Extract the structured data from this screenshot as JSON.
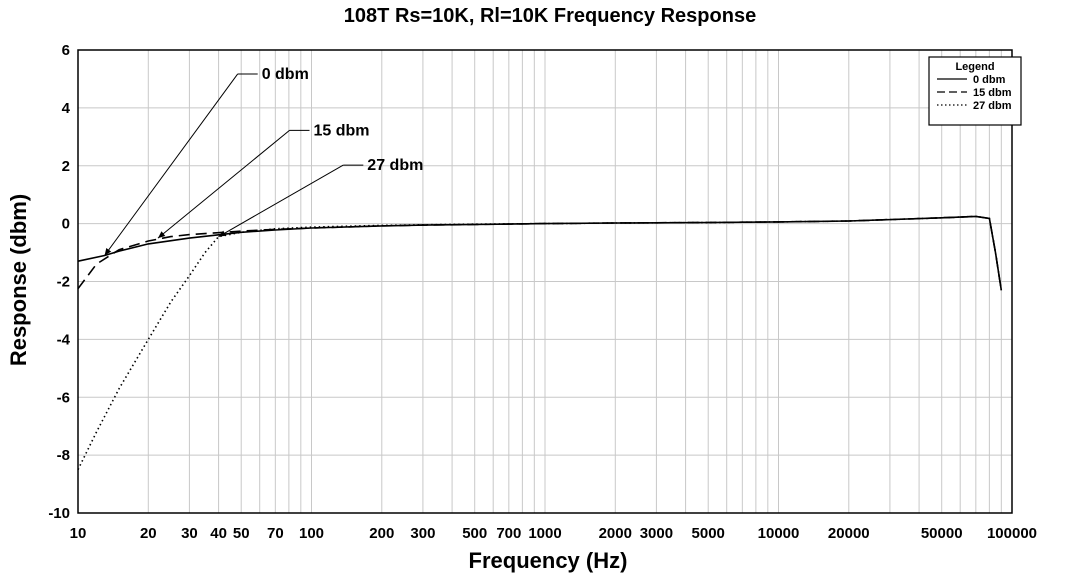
{
  "chart_data": {
    "type": "line",
    "title": "108T Rs=10K, Rl=10K Frequency Response",
    "xlabel": "Frequency (Hz)",
    "ylabel": "Response (dbm)",
    "xscale": "log",
    "xlim": [
      10,
      100000
    ],
    "ylim": [
      -10,
      6
    ],
    "x_ticks": [
      10,
      20,
      30,
      40,
      50,
      70,
      100,
      200,
      300,
      500,
      700,
      1000,
      2000,
      3000,
      5000,
      10000,
      20000,
      50000,
      100000
    ],
    "x_tick_labels": [
      "10",
      "20",
      "30",
      "40",
      "50",
      "70",
      "100",
      "200",
      "300",
      "500",
      "700",
      "1000",
      "2000",
      "3000",
      "5000",
      "10000",
      "20000",
      "50000",
      "100000"
    ],
    "y_ticks": [
      6,
      4,
      2,
      0,
      -2,
      -4,
      -6,
      -8,
      -10
    ],
    "y_tick_labels": [
      "6",
      "4",
      "2",
      "0",
      "-2",
      "-4",
      "-6",
      "-8",
      "-10"
    ],
    "grid": true,
    "legend": {
      "title": "Legend",
      "position": "top-right",
      "entries": [
        "0 dbm",
        "15 dbm",
        "27 dbm"
      ]
    },
    "series": [
      {
        "name": "0 dbm",
        "style": "solid",
        "x": [
          10,
          13,
          15,
          20,
          30,
          50,
          70,
          100,
          200,
          300,
          500,
          1000,
          2000,
          5000,
          10000,
          20000,
          50000,
          70000,
          80000,
          85000,
          90000
        ],
        "y": [
          -1.3,
          -1.1,
          -0.95,
          -0.7,
          -0.5,
          -0.3,
          -0.22,
          -0.15,
          -0.08,
          -0.05,
          -0.03,
          0.0,
          0.02,
          0.04,
          0.06,
          0.09,
          0.2,
          0.25,
          0.18,
          -1.0,
          -2.3
        ]
      },
      {
        "name": "15 dbm",
        "style": "dashed",
        "x": [
          10,
          12,
          15,
          20,
          25,
          30,
          50,
          70,
          100,
          200,
          300,
          500,
          1000,
          2000,
          5000,
          10000,
          20000,
          50000,
          70000,
          80000,
          85000,
          90000
        ],
        "y": [
          -2.25,
          -1.4,
          -0.9,
          -0.6,
          -0.45,
          -0.38,
          -0.26,
          -0.2,
          -0.15,
          -0.08,
          -0.05,
          -0.03,
          0.0,
          0.02,
          0.04,
          0.06,
          0.09,
          0.2,
          0.25,
          0.18,
          -1.0,
          -2.3
        ]
      },
      {
        "name": "27 dbm",
        "style": "dotted",
        "x": [
          10,
          12,
          15,
          20,
          25,
          30,
          35,
          40,
          50,
          70,
          100,
          200,
          300,
          500,
          1000,
          2000,
          5000,
          10000,
          20000,
          50000,
          70000,
          80000,
          85000,
          90000
        ],
        "y": [
          -8.5,
          -7.2,
          -5.7,
          -4.0,
          -2.7,
          -1.8,
          -1.0,
          -0.45,
          -0.3,
          -0.18,
          -0.12,
          -0.06,
          -0.04,
          -0.02,
          0.0,
          0.02,
          0.04,
          0.06,
          0.09,
          0.2,
          0.25,
          0.18,
          -1.0,
          -2.3
        ]
      }
    ],
    "annotations": [
      {
        "text": "0 dbm",
        "label_at": [
          60,
          5.0
        ],
        "points_to": [
          13,
          -1.1
        ]
      },
      {
        "text": "15 dbm",
        "label_at": [
          100,
          3.05
        ],
        "points_to": [
          22,
          -0.5
        ]
      },
      {
        "text": "27 dbm",
        "label_at": [
          170,
          1.85
        ],
        "points_to": [
          40,
          -0.45
        ]
      }
    ]
  }
}
